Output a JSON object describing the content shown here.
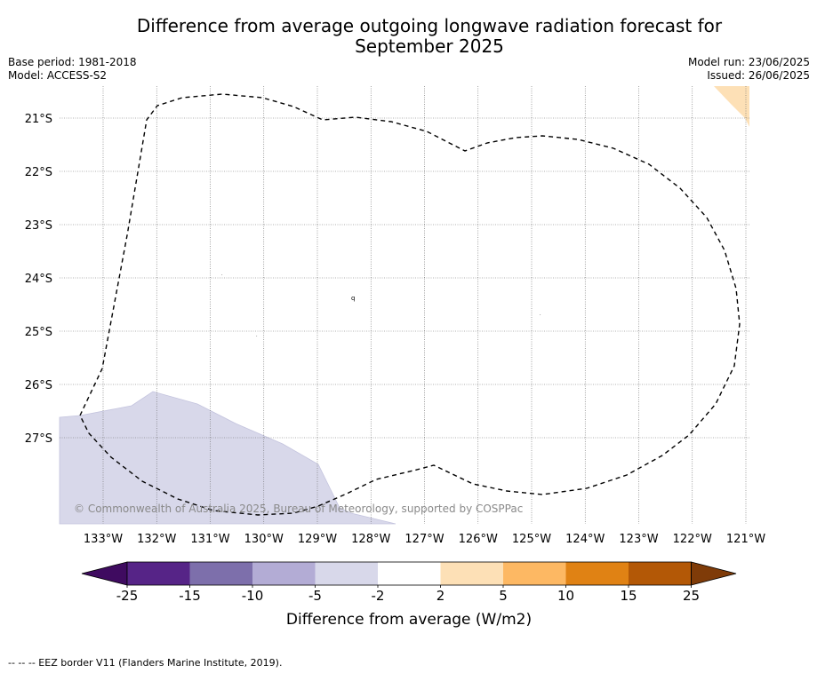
{
  "header": {
    "title_line1": "Difference from average outgoing longwave radiation forecast for",
    "title_line2": "September 2025",
    "base_period": "Base period: 1981-2018",
    "model": "Model: ACCESS-S2",
    "model_run": "Model run: 23/06/2025",
    "issued": "Issued: 26/06/2025"
  },
  "map": {
    "lat_labels": [
      "21°S",
      "22°S",
      "23°S",
      "24°S",
      "25°S",
      "26°S",
      "27°S"
    ],
    "lon_labels": [
      "133°W",
      "132°W",
      "131°W",
      "130°W",
      "129°W",
      "128°W",
      "127°W",
      "126°W",
      "125°W",
      "124°W",
      "123°W",
      "122°W",
      "121°W"
    ],
    "copyright": "© Commonwealth of Australia 2025, Bureau of Meteorology, supported by COSPPac",
    "colors": {
      "negative_area": "#d8d8ea",
      "positive_area": "#fde0b6",
      "eez_border": "#000000",
      "grid": "#666666"
    }
  },
  "colorbar": {
    "ticks": [
      "-25",
      "-15",
      "-10",
      "-5",
      "-2",
      "2",
      "5",
      "10",
      "15",
      "25"
    ],
    "label": "Difference from average (W/m2)",
    "colors": [
      "#3f0b60",
      "#562487",
      "#7d6fab",
      "#b3acd5",
      "#d8d8ea",
      "#ffffff",
      "#fde0b6",
      "#fdb863",
      "#e08214",
      "#b35806",
      "#7f3b08"
    ]
  },
  "footer": {
    "legend_text": "--  --  -- EEZ border V11 (Flanders Marine Institute, 2019)."
  }
}
